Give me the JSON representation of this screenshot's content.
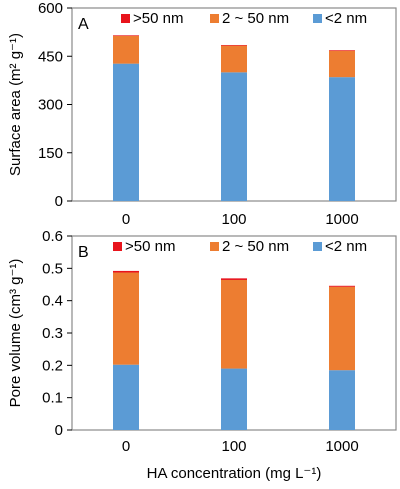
{
  "colors": {
    "micro": "#5b9bd5",
    "meso": "#ed7d31",
    "macro": "#e8141c"
  },
  "chart_data": [
    {
      "type": "bar",
      "stacked": true,
      "panel_label": "A",
      "categories": [
        "0",
        "100",
        "1000"
      ],
      "series": [
        {
          "name": "<2 nm",
          "values": [
            427,
            400,
            385
          ]
        },
        {
          "name": "2 ~ 50 nm",
          "values": [
            86,
            83,
            82
          ]
        },
        {
          "name": ">50 nm",
          "values": [
            2,
            2,
            2
          ]
        }
      ],
      "xlabel": "",
      "ylabel": "Surface area (m² g⁻¹)",
      "ylim": [
        0,
        600
      ],
      "yticks": [
        "0",
        "150",
        "300",
        "450",
        "600"
      ],
      "legend_position": "top",
      "grid": false
    },
    {
      "type": "bar",
      "stacked": true,
      "panel_label": "B",
      "categories": [
        "0",
        "100",
        "1000"
      ],
      "series": [
        {
          "name": "<2 nm",
          "values": [
            0.202,
            0.19,
            0.185
          ]
        },
        {
          "name": "2 ~ 50 nm",
          "values": [
            0.285,
            0.274,
            0.258
          ]
        },
        {
          "name": ">50 nm",
          "values": [
            0.005,
            0.005,
            0.003
          ]
        }
      ],
      "xlabel": "HA concentration (mg L⁻¹)",
      "ylabel": "Pore volume (cm³ g⁻¹)",
      "ylim": [
        0,
        0.6
      ],
      "yticks": [
        "0",
        "0.1",
        "0.2",
        "0.3",
        "0.4",
        "0.5",
        "0.6"
      ],
      "legend_position": "top",
      "grid": false
    }
  ]
}
